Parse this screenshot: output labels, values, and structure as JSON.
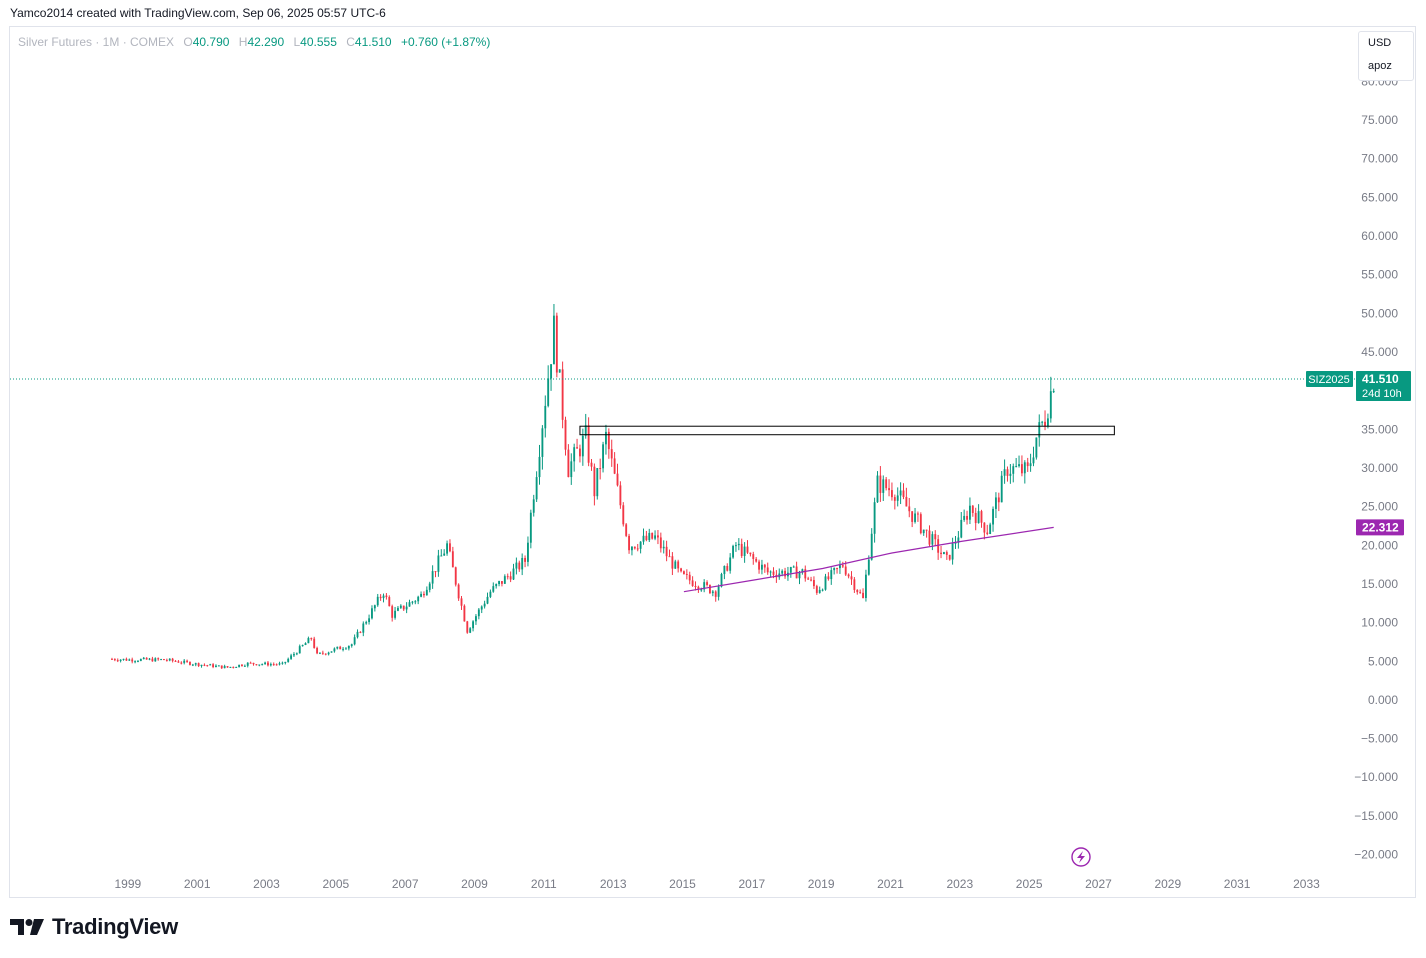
{
  "header": {
    "attribution": "Yamco2014 created with TradingView.com, Sep 06, 2025 05:57 UTC-6"
  },
  "legend": {
    "symbol": "Silver Futures · 1M · COMEX",
    "open_label": "O",
    "open": "40.790",
    "high_label": "H",
    "high": "42.290",
    "low_label": "L",
    "low": "40.555",
    "close_label": "C",
    "close": "41.510",
    "change": "+0.760 (+1.87%)"
  },
  "currency_box": {
    "currency": "USD",
    "label": "apoz"
  },
  "price_tag": {
    "ticker": "SIZ2025",
    "price": "41.510",
    "countdown": "24d 10h",
    "color": "#089981"
  },
  "ma_tag": {
    "value": "22.312",
    "color": "#9c27b0"
  },
  "footer": {
    "brand": "TradingView"
  },
  "colors": {
    "up": "#089981",
    "down": "#f23645",
    "ma": "#9c27b0",
    "last_price_line": "#089981"
  },
  "chart_data": {
    "type": "candlestick",
    "ytick_labels": [
      "80.000",
      "75.000",
      "70.000",
      "65.000",
      "60.000",
      "55.000",
      "50.000",
      "45.000",
      "40.000",
      "35.000",
      "30.000",
      "25.000",
      "20.000",
      "15.000",
      "10.000",
      "5.000",
      "0.000",
      "−5.000",
      "−10.000",
      "−15.000",
      "−20.000"
    ],
    "ylim": [
      -22,
      86
    ],
    "xtick_labels": [
      "1999",
      "2001",
      "2003",
      "2005",
      "2007",
      "2009",
      "2011",
      "2013",
      "2015",
      "2017",
      "2019",
      "2021",
      "2023",
      "2025",
      "2027",
      "2029",
      "2031",
      "2033"
    ],
    "xlim": [
      1995.6,
      2034.4
    ],
    "last_price": 41.51,
    "series": [
      {
        "name": "Silver Futures",
        "points": [
          {
            "x": "1998-06",
            "y": 5.3
          },
          {
            "x": "1999-01",
            "y": 5.2
          },
          {
            "x": "2000-01",
            "y": 5.2
          },
          {
            "x": "2001-01",
            "y": 4.6
          },
          {
            "x": "2001-11",
            "y": 4.2
          },
          {
            "x": "2002-06",
            "y": 4.7
          },
          {
            "x": "2003-06",
            "y": 4.6
          },
          {
            "x": "2004-04",
            "y": 8.0
          },
          {
            "x": "2004-06",
            "y": 5.8
          },
          {
            "x": "2005-06",
            "y": 7.2
          },
          {
            "x": "2006-05",
            "y": 14.0
          },
          {
            "x": "2006-08",
            "y": 11.0
          },
          {
            "x": "2007-06",
            "y": 13.5
          },
          {
            "x": "2008-03",
            "y": 20.0
          },
          {
            "x": "2008-10",
            "y": 9.0
          },
          {
            "x": "2009-06",
            "y": 14.0
          },
          {
            "x": "2010-06",
            "y": 18.0
          },
          {
            "x": "2011-04",
            "y": 48.0
          },
          {
            "x": "2011-09",
            "y": 30.0
          },
          {
            "x": "2012-03",
            "y": 34.0
          },
          {
            "x": "2012-06",
            "y": 27.0
          },
          {
            "x": "2012-10",
            "y": 34.0
          },
          {
            "x": "2013-06",
            "y": 20.0
          },
          {
            "x": "2014-03",
            "y": 21.0
          },
          {
            "x": "2014-12",
            "y": 16.0
          },
          {
            "x": "2015-12",
            "y": 14.0
          },
          {
            "x": "2016-07",
            "y": 20.0
          },
          {
            "x": "2017-06",
            "y": 16.5
          },
          {
            "x": "2018-06",
            "y": 16.5
          },
          {
            "x": "2018-11",
            "y": 14.2
          },
          {
            "x": "2019-08",
            "y": 17.5
          },
          {
            "x": "2020-03",
            "y": 13.0
          },
          {
            "x": "2020-08",
            "y": 28.0
          },
          {
            "x": "2021-02",
            "y": 27.0
          },
          {
            "x": "2021-10",
            "y": 23.0
          },
          {
            "x": "2022-08",
            "y": 18.0
          },
          {
            "x": "2023-04",
            "y": 25.0
          },
          {
            "x": "2023-10",
            "y": 22.0
          },
          {
            "x": "2024-05",
            "y": 30.0
          },
          {
            "x": "2024-12",
            "y": 29.5
          },
          {
            "x": "2025-03",
            "y": 34.0
          },
          {
            "x": "2025-06",
            "y": 36.5
          },
          {
            "x": "2025-09",
            "y": 41.51
          }
        ]
      },
      {
        "name": "MA",
        "points": [
          {
            "x": "2015-01",
            "y": 14.0
          },
          {
            "x": "2017-01",
            "y": 15.5
          },
          {
            "x": "2019-01",
            "y": 17.0
          },
          {
            "x": "2021-01",
            "y": 19.0
          },
          {
            "x": "2023-01",
            "y": 20.5
          },
          {
            "x": "2025-09",
            "y": 22.312
          }
        ]
      }
    ],
    "annotations": [
      {
        "type": "rectangle",
        "x0": "2012-01",
        "x1": "2027-06",
        "y0": 34.3,
        "y1": 35.4
      }
    ]
  }
}
